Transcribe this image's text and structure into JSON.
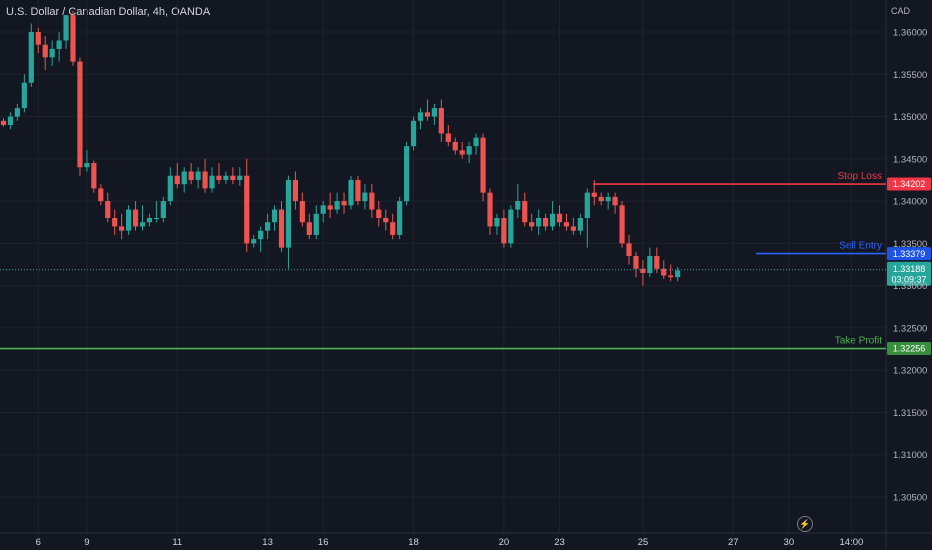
{
  "header": {
    "title": "U.S. Dollar / Canadian Dollar, 4h, OANDA",
    "currency": "CAD"
  },
  "flash_icon": "lightning-icon",
  "colors": {
    "background": "#131722",
    "up": "#26a69a",
    "down": "#ef5350",
    "stop_loss": "#f23645",
    "entry": "#2962ff",
    "take_profit": "#4caf50",
    "grid": "#1e222d"
  },
  "levels": {
    "stop_loss": {
      "label": "Stop Loss",
      "value": "1.34202"
    },
    "sell_entry": {
      "label": "Sell Entry",
      "value": "1.33379"
    },
    "take_profit": {
      "label": "Take Profit",
      "value": "1.32256"
    },
    "current": {
      "value": "1.33188",
      "countdown": "03:09:37"
    }
  },
  "chart_data": {
    "type": "candlestick",
    "symbol": "USDCAD",
    "interval": "4h",
    "broker": "OANDA",
    "y_ticks": [
      "1.36000",
      "1.35500",
      "1.35000",
      "1.34500",
      "1.34000",
      "1.33500",
      "1.33000",
      "1.32500",
      "1.32000",
      "1.31500",
      "1.31000",
      "1.30500"
    ],
    "ylim": [
      1.3025,
      1.3621
    ],
    "x_ticks": [
      {
        "label": "6",
        "index": 5
      },
      {
        "label": "9",
        "index": 12
      },
      {
        "label": "11",
        "index": 25
      },
      {
        "label": "13",
        "index": 38
      },
      {
        "label": "16",
        "index": 46
      },
      {
        "label": "18",
        "index": 59
      },
      {
        "label": "20",
        "index": 72
      },
      {
        "label": "23",
        "index": 80
      },
      {
        "label": "25",
        "index": 92
      },
      {
        "label": "27",
        "index": 105
      },
      {
        "label": "30",
        "index": 113
      },
      {
        "label": "14:00",
        "index": 122
      }
    ],
    "bars_in_view": 134,
    "candles": [
      [
        1.3495,
        1.3498,
        1.3488,
        1.349
      ],
      [
        1.349,
        1.3505,
        1.3485,
        1.35
      ],
      [
        1.35,
        1.3515,
        1.3495,
        1.351
      ],
      [
        1.351,
        1.355,
        1.3505,
        1.354
      ],
      [
        1.354,
        1.361,
        1.3535,
        1.36
      ],
      [
        1.36,
        1.3605,
        1.3575,
        1.3585
      ],
      [
        1.3585,
        1.3595,
        1.3555,
        1.357
      ],
      [
        1.357,
        1.359,
        1.356,
        1.358
      ],
      [
        1.358,
        1.36,
        1.3565,
        1.359
      ],
      [
        1.359,
        1.362,
        1.358,
        1.362
      ],
      [
        1.362,
        1.3625,
        1.356,
        1.3565
      ],
      [
        1.3565,
        1.357,
        1.343,
        1.344
      ],
      [
        1.344,
        1.346,
        1.3435,
        1.3445
      ],
      [
        1.3445,
        1.3448,
        1.341,
        1.3415
      ],
      [
        1.3415,
        1.342,
        1.3395,
        1.34
      ],
      [
        1.34,
        1.341,
        1.3375,
        1.338
      ],
      [
        1.338,
        1.339,
        1.336,
        1.337
      ],
      [
        1.337,
        1.3385,
        1.3355,
        1.3365
      ],
      [
        1.3365,
        1.3395,
        1.336,
        1.339
      ],
      [
        1.339,
        1.34,
        1.3365,
        1.337
      ],
      [
        1.337,
        1.3395,
        1.3365,
        1.3375
      ],
      [
        1.3375,
        1.3385,
        1.337,
        1.338
      ],
      [
        1.338,
        1.34,
        1.3375,
        1.338
      ],
      [
        1.338,
        1.3405,
        1.3375,
        1.34
      ],
      [
        1.34,
        1.344,
        1.3395,
        1.343
      ],
      [
        1.343,
        1.3445,
        1.3415,
        1.342
      ],
      [
        1.342,
        1.344,
        1.341,
        1.3435
      ],
      [
        1.3435,
        1.3445,
        1.342,
        1.3425
      ],
      [
        1.3425,
        1.344,
        1.3415,
        1.3435
      ],
      [
        1.3435,
        1.345,
        1.341,
        1.3415
      ],
      [
        1.3415,
        1.344,
        1.341,
        1.343
      ],
      [
        1.343,
        1.3445,
        1.342,
        1.3425
      ],
      [
        1.3425,
        1.3435,
        1.342,
        1.343
      ],
      [
        1.343,
        1.344,
        1.342,
        1.3425
      ],
      [
        1.3425,
        1.344,
        1.3418,
        1.343
      ],
      [
        1.343,
        1.345,
        1.334,
        1.335
      ],
      [
        1.335,
        1.336,
        1.3345,
        1.3355
      ],
      [
        1.3355,
        1.337,
        1.334,
        1.3365
      ],
      [
        1.3365,
        1.3385,
        1.3355,
        1.3375
      ],
      [
        1.3375,
        1.3395,
        1.3365,
        1.339
      ],
      [
        1.339,
        1.34,
        1.334,
        1.3345
      ],
      [
        1.3345,
        1.343,
        1.332,
        1.3425
      ],
      [
        1.3425,
        1.3435,
        1.339,
        1.34
      ],
      [
        1.34,
        1.341,
        1.337,
        1.3375
      ],
      [
        1.3375,
        1.3385,
        1.3355,
        1.336
      ],
      [
        1.336,
        1.3395,
        1.3355,
        1.3385
      ],
      [
        1.3385,
        1.34,
        1.3375,
        1.3395
      ],
      [
        1.3395,
        1.341,
        1.338,
        1.339
      ],
      [
        1.339,
        1.341,
        1.3385,
        1.34
      ],
      [
        1.34,
        1.341,
        1.3385,
        1.3395
      ],
      [
        1.3395,
        1.343,
        1.339,
        1.3425
      ],
      [
        1.3425,
        1.343,
        1.3395,
        1.34
      ],
      [
        1.34,
        1.342,
        1.339,
        1.341
      ],
      [
        1.341,
        1.342,
        1.338,
        1.339
      ],
      [
        1.339,
        1.34,
        1.337,
        1.338
      ],
      [
        1.338,
        1.339,
        1.3365,
        1.3375
      ],
      [
        1.3375,
        1.3385,
        1.3355,
        1.336
      ],
      [
        1.336,
        1.3405,
        1.3355,
        1.34
      ],
      [
        1.34,
        1.347,
        1.3395,
        1.3465
      ],
      [
        1.3465,
        1.35,
        1.346,
        1.3495
      ],
      [
        1.3495,
        1.351,
        1.3485,
        1.3505
      ],
      [
        1.3505,
        1.352,
        1.3495,
        1.35
      ],
      [
        1.35,
        1.3515,
        1.349,
        1.351
      ],
      [
        1.351,
        1.352,
        1.347,
        1.348
      ],
      [
        1.348,
        1.349,
        1.3465,
        1.347
      ],
      [
        1.347,
        1.3475,
        1.3455,
        1.346
      ],
      [
        1.346,
        1.347,
        1.345,
        1.3455
      ],
      [
        1.3455,
        1.347,
        1.3445,
        1.3465
      ],
      [
        1.3465,
        1.348,
        1.3455,
        1.3475
      ],
      [
        1.3475,
        1.348,
        1.34,
        1.341
      ],
      [
        1.341,
        1.3415,
        1.336,
        1.337
      ],
      [
        1.337,
        1.3385,
        1.336,
        1.338
      ],
      [
        1.338,
        1.339,
        1.3345,
        1.335
      ],
      [
        1.335,
        1.3395,
        1.3345,
        1.339
      ],
      [
        1.339,
        1.342,
        1.338,
        1.34
      ],
      [
        1.34,
        1.341,
        1.337,
        1.3375
      ],
      [
        1.3375,
        1.3385,
        1.3365,
        1.337
      ],
      [
        1.337,
        1.339,
        1.336,
        1.338
      ],
      [
        1.338,
        1.3385,
        1.3365,
        1.337
      ],
      [
        1.337,
        1.34,
        1.3365,
        1.3385
      ],
      [
        1.3385,
        1.3395,
        1.337,
        1.3375
      ],
      [
        1.3375,
        1.3385,
        1.3365,
        1.337
      ],
      [
        1.337,
        1.338,
        1.336,
        1.3365
      ],
      [
        1.3365,
        1.3385,
        1.336,
        1.338
      ],
      [
        1.338,
        1.3415,
        1.3345,
        1.341
      ],
      [
        1.341,
        1.3425,
        1.3395,
        1.3405
      ],
      [
        1.3405,
        1.341,
        1.3395,
        1.34
      ],
      [
        1.34,
        1.341,
        1.339,
        1.3405
      ],
      [
        1.3405,
        1.341,
        1.3385,
        1.3395
      ],
      [
        1.3395,
        1.34,
        1.3345,
        1.335
      ],
      [
        1.335,
        1.336,
        1.3325,
        1.3335
      ],
      [
        1.3335,
        1.334,
        1.331,
        1.332
      ],
      [
        1.332,
        1.333,
        1.33,
        1.3315
      ],
      [
        1.3315,
        1.3345,
        1.331,
        1.3335
      ],
      [
        1.3335,
        1.3345,
        1.3315,
        1.332
      ],
      [
        1.332,
        1.333,
        1.3308,
        1.3312
      ],
      [
        1.3312,
        1.3325,
        1.3305,
        1.331
      ],
      [
        1.331,
        1.3322,
        1.3305,
        1.3318
      ]
    ]
  }
}
